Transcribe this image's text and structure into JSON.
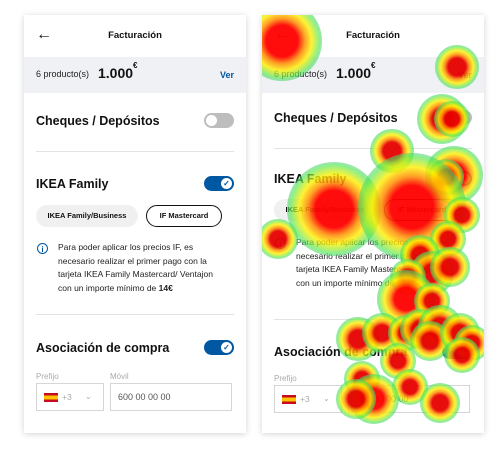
{
  "header": {
    "back_glyph": "←",
    "title": "Facturación"
  },
  "summary": {
    "count": "6 producto(s)",
    "price": "1.000",
    "currency": "€",
    "link": "Ver"
  },
  "sections": {
    "cheques": {
      "title": "Cheques / Depósitos",
      "enabled": false
    },
    "ikea_family": {
      "title": "IKEA Family",
      "enabled": true,
      "options": [
        "IKEA Family/Business",
        "IF Mastercard"
      ],
      "selected_option": "IF Mastercard",
      "info_icon": "info-icon",
      "info_text": "Para poder aplicar los precios IF, es necesario realizar el primer pago con la tarjeta IKEA Family Mastercard/ Ventajon con un importe mínimo de",
      "info_amount": "14€"
    },
    "asociacion": {
      "title": "Asociación de compra",
      "enabled": true,
      "prefix_label": "Prefijo",
      "prefix_value": "+3",
      "mobile_label": "Móvil",
      "mobile_placeholder": "600 00 00 00"
    }
  },
  "colors": {
    "accent": "#0058a3",
    "summary_bg": "#f0f1f4",
    "toggle_off": "#bdbdbd"
  }
}
